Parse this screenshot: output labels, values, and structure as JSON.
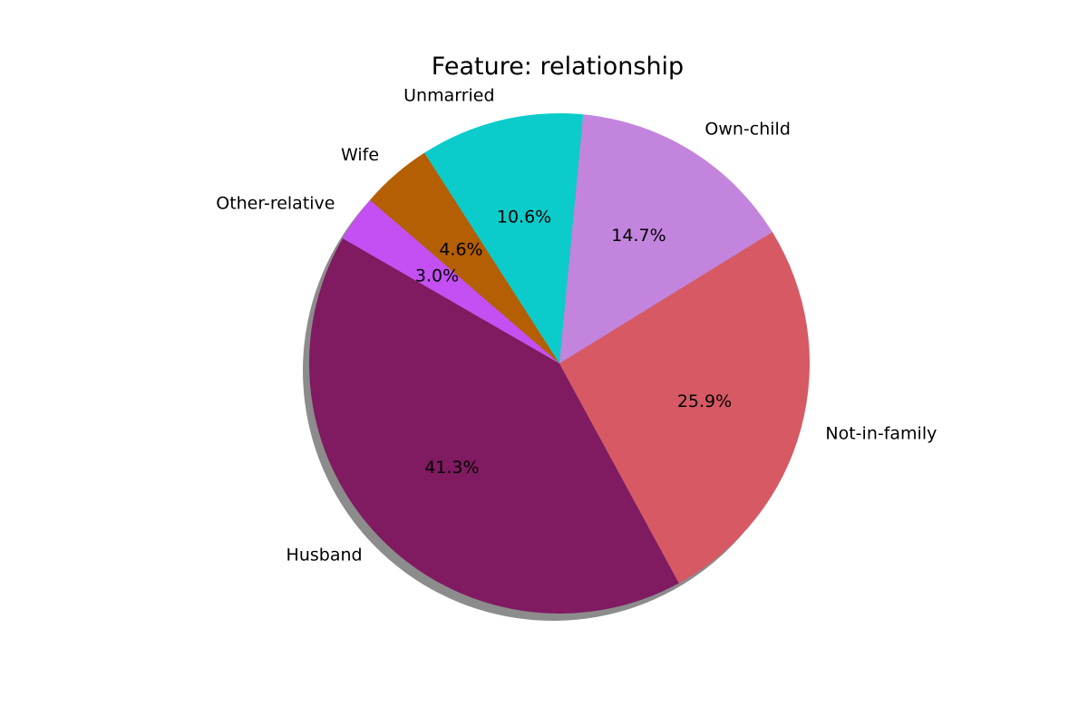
{
  "chart_data": {
    "type": "pie",
    "title": "Feature: relationship",
    "categories": [
      "Husband",
      "Not-in-family",
      "Own-child",
      "Unmarried",
      "Wife",
      "Other-relative"
    ],
    "values": [
      41.3,
      25.9,
      14.7,
      10.6,
      4.6,
      3.0
    ],
    "value_labels": [
      "41.3%",
      "25.9%",
      "14.7%",
      "10.6%",
      "4.6%",
      "3.0%"
    ],
    "colors": [
      "#801a61",
      "#d65964",
      "#c384de",
      "#0ccccb",
      "#b45f03",
      "#c44ff2"
    ],
    "shadow": true,
    "legend": "none"
  }
}
